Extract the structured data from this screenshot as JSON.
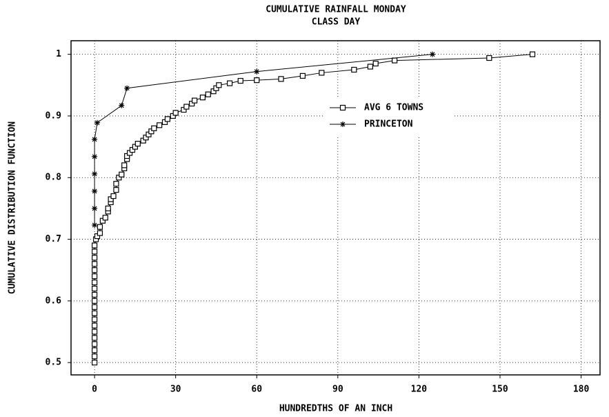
{
  "chart_data": {
    "type": "line",
    "title": "CUMULATIVE RAINFALL MONDAY",
    "subtitle": "CLASS DAY",
    "x_label": "HUNDREDTHS OF AN INCH",
    "y_label": "CUMULATIVE DISTRIBUTION FUNCTION",
    "xlim": [
      -8.7,
      187
    ],
    "ylim": [
      0.48,
      1.022
    ],
    "xticks": [
      0,
      30,
      60,
      90,
      120,
      150,
      180
    ],
    "yticks": [
      0.5,
      0.6,
      0.7,
      0.8,
      0.9,
      1
    ],
    "grid": true,
    "legend": "upper center",
    "series": [
      {
        "name": "AVG 6 TOWNS",
        "color": "#000000",
        "marker": "square",
        "x": [
          0,
          0,
          0,
          0,
          0,
          0,
          0,
          0,
          0,
          0,
          0,
          0,
          0,
          0,
          0,
          0,
          0,
          0,
          0,
          0,
          0.5,
          1,
          2,
          2,
          3,
          4,
          5,
          5,
          6,
          6,
          7,
          8,
          8,
          9,
          10,
          11,
          11,
          12,
          12,
          13,
          14,
          15,
          16,
          18,
          19,
          20,
          21,
          22,
          24,
          26,
          27,
          29,
          30,
          33,
          34,
          36,
          37,
          40,
          42,
          44,
          45,
          46,
          50,
          54,
          60,
          69,
          77,
          84,
          96,
          102,
          104,
          111,
          146,
          162
        ],
        "values": [
          0.5,
          0.51,
          0.52,
          0.53,
          0.54,
          0.55,
          0.56,
          0.57,
          0.58,
          0.59,
          0.6,
          0.61,
          0.62,
          0.63,
          0.64,
          0.65,
          0.66,
          0.67,
          0.68,
          0.69,
          0.7,
          0.705,
          0.71,
          0.72,
          0.73,
          0.735,
          0.745,
          0.75,
          0.76,
          0.765,
          0.77,
          0.78,
          0.79,
          0.8,
          0.805,
          0.815,
          0.82,
          0.83,
          0.835,
          0.84,
          0.845,
          0.85,
          0.855,
          0.86,
          0.865,
          0.87,
          0.875,
          0.88,
          0.885,
          0.89,
          0.895,
          0.9,
          0.905,
          0.91,
          0.915,
          0.92,
          0.925,
          0.93,
          0.935,
          0.94,
          0.945,
          0.95,
          0.953,
          0.957,
          0.958,
          0.96,
          0.965,
          0.97,
          0.975,
          0.98,
          0.985,
          0.99,
          0.994,
          1
        ]
      },
      {
        "name": "PRINCETON",
        "color": "#000000",
        "marker": "asterisk",
        "x": [
          0,
          0,
          0,
          0,
          0,
          0,
          1,
          10,
          12,
          60,
          125
        ],
        "values": [
          0.723,
          0.75,
          0.778,
          0.806,
          0.834,
          0.862,
          0.889,
          0.917,
          0.945,
          0.972,
          1
        ]
      }
    ]
  }
}
